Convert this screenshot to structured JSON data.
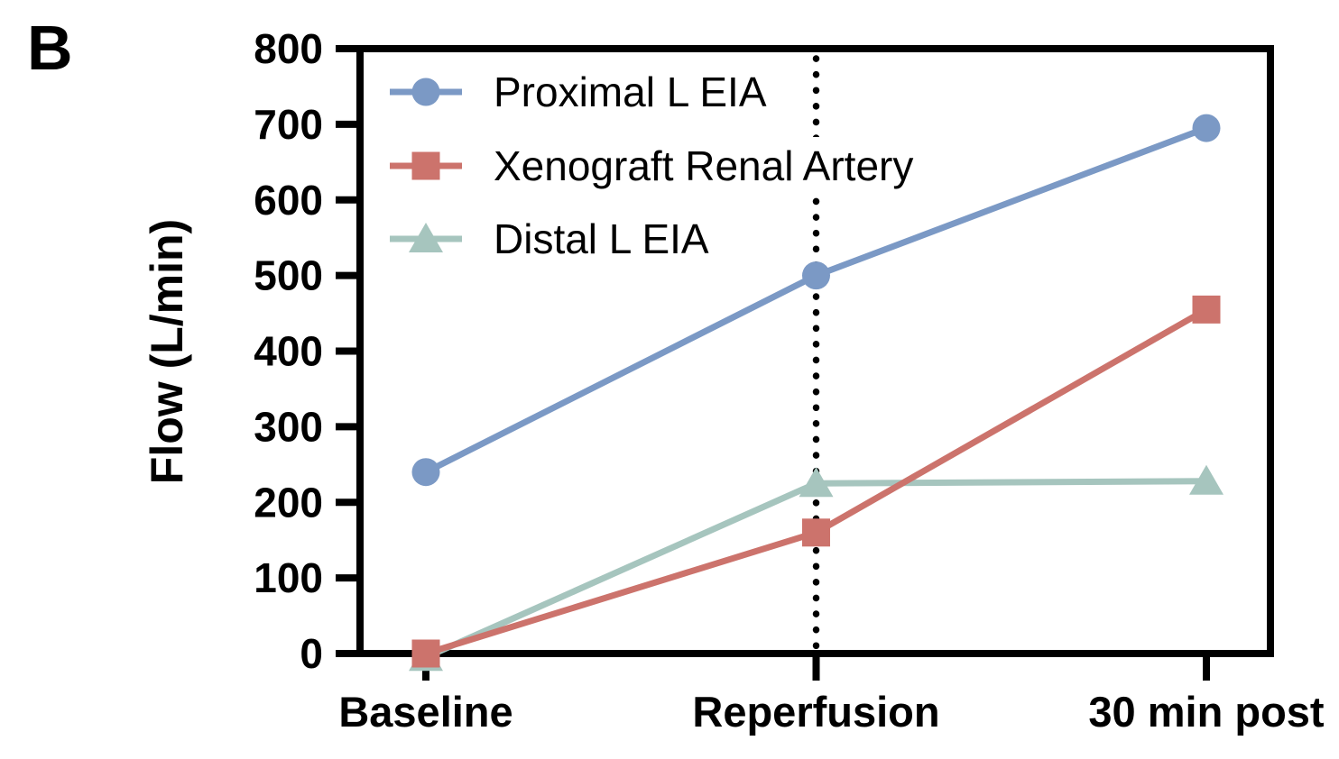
{
  "panel_label": "B",
  "chart_data": {
    "type": "line",
    "title": "",
    "xlabel": "",
    "ylabel": "Flow (L/min)",
    "categories": [
      "Baseline",
      "Reperfusion",
      "30 min post"
    ],
    "ylim": [
      0,
      800
    ],
    "yticks": [
      0,
      100,
      200,
      300,
      400,
      500,
      600,
      700,
      800
    ],
    "grid": false,
    "frame": true,
    "legend_position": "top-left-inside",
    "axis_color": "#000000",
    "text_color": "#000000",
    "annotations": [
      {
        "type": "vline",
        "at_category": "Reperfusion",
        "style": "dotted",
        "color": "#000000"
      }
    ],
    "series": [
      {
        "name": "Proximal L EIA",
        "marker": "circle",
        "color": "#7b99c5",
        "values": [
          240,
          500,
          695
        ]
      },
      {
        "name": "Xenograft Renal Artery",
        "marker": "square",
        "color": "#cc736c",
        "values": [
          0,
          160,
          455
        ]
      },
      {
        "name": "Distal L EIA",
        "marker": "triangle",
        "color": "#a6c5be",
        "values": [
          -5,
          225,
          228
        ]
      }
    ]
  }
}
